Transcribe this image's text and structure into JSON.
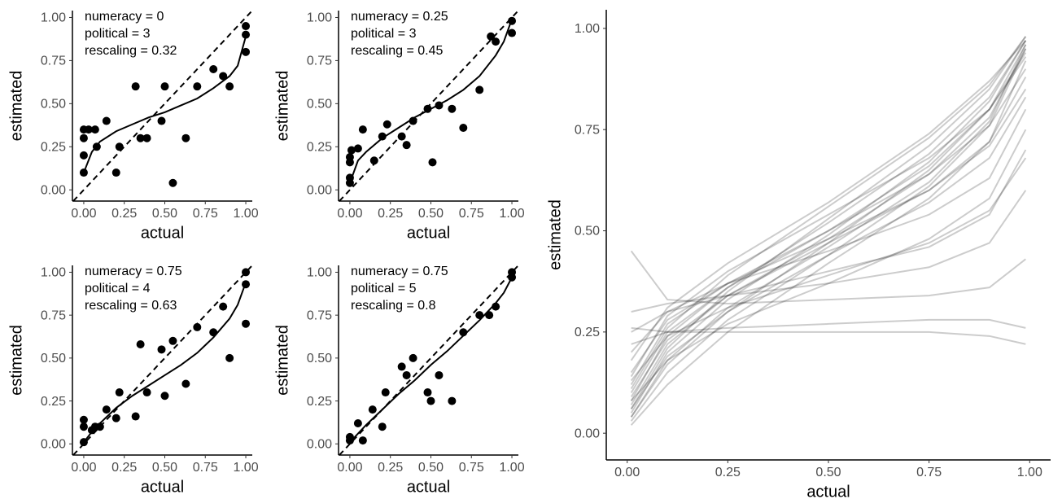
{
  "chart_data": [
    {
      "type": "scatter",
      "annotation": [
        "numeracy =  0",
        "political =  3",
        "rescaling =  0.32"
      ],
      "xlabel": "actual",
      "ylabel": "estimated",
      "xlim": [
        -0.07,
        1.04
      ],
      "ylim": [
        -0.065,
        1.04
      ],
      "xticks": [
        {
          "value": 0,
          "label": "0.00"
        },
        {
          "value": 0.25,
          "label": "0.25"
        },
        {
          "value": 0.5,
          "label": "0.50"
        },
        {
          "value": 0.75,
          "label": "0.75"
        },
        {
          "value": 1,
          "label": "1.00"
        }
      ],
      "yticks": [
        {
          "value": 0,
          "label": "0.00"
        },
        {
          "value": 0.25,
          "label": "0.25"
        },
        {
          "value": 0.5,
          "label": "0.50"
        },
        {
          "value": 0.75,
          "label": "0.75"
        },
        {
          "value": 1,
          "label": "1.00"
        }
      ],
      "identity_line": true,
      "color": "#000000",
      "points": {
        "x": [
          0,
          0,
          0,
          0,
          0.03,
          0.07,
          0.08,
          0.14,
          0.2,
          0.22,
          0.32,
          0.35,
          0.39,
          0.48,
          0.5,
          0.55,
          0.63,
          0.7,
          0.8,
          0.86,
          0.9,
          1,
          1,
          1
        ],
        "y": [
          0.1,
          0.2,
          0.3,
          0.35,
          0.35,
          0.35,
          0.25,
          0.4,
          0.1,
          0.25,
          0.6,
          0.3,
          0.3,
          0.4,
          0.6,
          0.04,
          0.3,
          0.6,
          0.7,
          0.66,
          0.6,
          0.8,
          0.9,
          0.95
        ]
      },
      "fit": {
        "x": [
          0,
          0.05,
          0.1,
          0.2,
          0.3,
          0.4,
          0.5,
          0.6,
          0.7,
          0.8,
          0.9,
          0.95,
          1
        ],
        "y": [
          0.1,
          0.22,
          0.28,
          0.34,
          0.38,
          0.42,
          0.45,
          0.49,
          0.53,
          0.59,
          0.66,
          0.72,
          0.89
        ]
      }
    },
    {
      "type": "scatter",
      "annotation": [
        "numeracy =  0.25",
        "political =  3",
        "rescaling =  0.45"
      ],
      "xlabel": "actual",
      "ylabel": "estimated",
      "xlim": [
        -0.07,
        1.04
      ],
      "ylim": [
        -0.065,
        1.04
      ],
      "xticks": [
        {
          "value": 0,
          "label": "0.00"
        },
        {
          "value": 0.25,
          "label": "0.25"
        },
        {
          "value": 0.5,
          "label": "0.50"
        },
        {
          "value": 0.75,
          "label": "0.75"
        },
        {
          "value": 1,
          "label": "1.00"
        }
      ],
      "yticks": [
        {
          "value": 0,
          "label": "0.00"
        },
        {
          "value": 0.25,
          "label": "0.25"
        },
        {
          "value": 0.5,
          "label": "0.50"
        },
        {
          "value": 0.75,
          "label": "0.75"
        },
        {
          "value": 1,
          "label": "1.00"
        }
      ],
      "identity_line": true,
      "color": "#000000",
      "points": {
        "x": [
          0,
          0,
          0,
          0,
          0.01,
          0.05,
          0.08,
          0.15,
          0.2,
          0.23,
          0.32,
          0.35,
          0.39,
          0.48,
          0.51,
          0.55,
          0.63,
          0.7,
          0.8,
          0.87,
          0.9,
          1,
          1
        ],
        "y": [
          0.04,
          0.07,
          0.16,
          0.19,
          0.23,
          0.24,
          0.35,
          0.17,
          0.31,
          0.38,
          0.31,
          0.26,
          0.4,
          0.47,
          0.16,
          0.49,
          0.47,
          0.36,
          0.58,
          0.89,
          0.86,
          0.91,
          0.98
        ]
      },
      "fit": {
        "x": [
          0,
          0.05,
          0.1,
          0.2,
          0.3,
          0.4,
          0.5,
          0.6,
          0.7,
          0.8,
          0.9,
          0.95,
          1
        ],
        "y": [
          0.04,
          0.17,
          0.22,
          0.3,
          0.36,
          0.42,
          0.47,
          0.52,
          0.58,
          0.66,
          0.78,
          0.86,
          0.99
        ]
      }
    },
    {
      "type": "scatter",
      "annotation": [
        "numeracy =  0.75",
        "political =  4",
        "rescaling =  0.63"
      ],
      "xlabel": "actual",
      "ylabel": "estimated",
      "xlim": [
        -0.07,
        1.04
      ],
      "ylim": [
        -0.065,
        1.04
      ],
      "xticks": [
        {
          "value": 0,
          "label": "0.00"
        },
        {
          "value": 0.25,
          "label": "0.25"
        },
        {
          "value": 0.5,
          "label": "0.50"
        },
        {
          "value": 0.75,
          "label": "0.75"
        },
        {
          "value": 1,
          "label": "1.00"
        }
      ],
      "yticks": [
        {
          "value": 0,
          "label": "0.00"
        },
        {
          "value": 0.25,
          "label": "0.25"
        },
        {
          "value": 0.5,
          "label": "0.50"
        },
        {
          "value": 0.75,
          "label": "0.75"
        },
        {
          "value": 1,
          "label": "1.00"
        }
      ],
      "identity_line": true,
      "color": "#000000",
      "points": {
        "x": [
          0,
          0,
          0,
          0.05,
          0.07,
          0.1,
          0.14,
          0.2,
          0.22,
          0.32,
          0.35,
          0.39,
          0.48,
          0.5,
          0.55,
          0.63,
          0.7,
          0.8,
          0.86,
          0.9,
          1,
          1,
          1
        ],
        "y": [
          0.01,
          0.1,
          0.14,
          0.08,
          0.1,
          0.1,
          0.2,
          0.15,
          0.3,
          0.16,
          0.58,
          0.3,
          0.55,
          0.28,
          0.6,
          0.35,
          0.68,
          0.65,
          0.8,
          0.5,
          0.7,
          0.93,
          1.0
        ]
      },
      "fit": {
        "x": [
          0,
          0.05,
          0.1,
          0.2,
          0.3,
          0.4,
          0.5,
          0.6,
          0.7,
          0.8,
          0.9,
          0.95,
          1
        ],
        "y": [
          0.01,
          0.07,
          0.12,
          0.21,
          0.28,
          0.34,
          0.4,
          0.46,
          0.53,
          0.62,
          0.73,
          0.81,
          0.94
        ]
      }
    },
    {
      "type": "scatter",
      "annotation": [
        "numeracy =  0.75",
        "political =  5",
        "rescaling =  0.8"
      ],
      "xlabel": "actual",
      "ylabel": "estimated",
      "xlim": [
        -0.07,
        1.04
      ],
      "ylim": [
        -0.065,
        1.04
      ],
      "xticks": [
        {
          "value": 0,
          "label": "0.00"
        },
        {
          "value": 0.25,
          "label": "0.25"
        },
        {
          "value": 0.5,
          "label": "0.50"
        },
        {
          "value": 0.75,
          "label": "0.75"
        },
        {
          "value": 1,
          "label": "1.00"
        }
      ],
      "yticks": [
        {
          "value": 0,
          "label": "0.00"
        },
        {
          "value": 0.25,
          "label": "0.25"
        },
        {
          "value": 0.5,
          "label": "0.50"
        },
        {
          "value": 0.75,
          "label": "0.75"
        },
        {
          "value": 1,
          "label": "1.00"
        }
      ],
      "identity_line": true,
      "color": "#000000",
      "points": {
        "x": [
          0,
          0,
          0.05,
          0.08,
          0.14,
          0.2,
          0.22,
          0.32,
          0.35,
          0.39,
          0.48,
          0.5,
          0.55,
          0.63,
          0.7,
          0.8,
          0.86,
          0.9,
          1,
          1
        ],
        "y": [
          0.02,
          0.04,
          0.12,
          0.02,
          0.2,
          0.1,
          0.3,
          0.45,
          0.4,
          0.5,
          0.3,
          0.25,
          0.4,
          0.25,
          0.65,
          0.75,
          0.75,
          0.8,
          0.97,
          1.0
        ]
      },
      "fit": {
        "x": [
          0,
          0.05,
          0.1,
          0.2,
          0.3,
          0.4,
          0.5,
          0.6,
          0.7,
          0.8,
          0.9,
          0.95,
          1
        ],
        "y": [
          0.01,
          0.06,
          0.11,
          0.2,
          0.29,
          0.37,
          0.46,
          0.54,
          0.63,
          0.72,
          0.82,
          0.88,
          0.97
        ]
      }
    },
    {
      "type": "line",
      "xlabel": "actual",
      "ylabel": "estimated",
      "xlim": [
        -0.052,
        1.052
      ],
      "ylim": [
        -0.066,
        1.046
      ],
      "xticks": [
        {
          "value": 0,
          "label": "0.00"
        },
        {
          "value": 0.25,
          "label": "0.25"
        },
        {
          "value": 0.5,
          "label": "0.50"
        },
        {
          "value": 0.75,
          "label": "0.75"
        },
        {
          "value": 1,
          "label": "1.00"
        }
      ],
      "yticks": [
        {
          "value": 0,
          "label": "0.00"
        },
        {
          "value": 0.25,
          "label": "0.25"
        },
        {
          "value": 0.5,
          "label": "0.50"
        },
        {
          "value": 0.75,
          "label": "0.75"
        },
        {
          "value": 1,
          "label": "1.00"
        }
      ],
      "color": "#000000",
      "opacity": 0.2,
      "x": [
        0.01,
        0.1,
        0.25,
        0.5,
        0.75,
        0.9,
        0.99
      ],
      "series": [
        {
          "values": [
            0.07,
            0.22,
            0.34,
            0.48,
            0.64,
            0.78,
            0.95
          ]
        },
        {
          "values": [
            0.04,
            0.18,
            0.31,
            0.46,
            0.62,
            0.77,
            0.96
          ]
        },
        {
          "values": [
            0.1,
            0.25,
            0.36,
            0.5,
            0.66,
            0.8,
            0.94
          ]
        },
        {
          "values": [
            0.05,
            0.2,
            0.33,
            0.49,
            0.67,
            0.82,
            0.97
          ]
        },
        {
          "values": [
            0.12,
            0.27,
            0.37,
            0.5,
            0.64,
            0.76,
            0.9
          ]
        },
        {
          "values": [
            0.03,
            0.15,
            0.28,
            0.44,
            0.61,
            0.76,
            0.95
          ]
        },
        {
          "values": [
            0.08,
            0.24,
            0.36,
            0.52,
            0.69,
            0.83,
            0.97
          ]
        },
        {
          "values": [
            0.15,
            0.28,
            0.37,
            0.48,
            0.6,
            0.72,
            0.88
          ]
        },
        {
          "values": [
            0.06,
            0.21,
            0.35,
            0.53,
            0.71,
            0.85,
            0.98
          ]
        },
        {
          "values": [
            0.09,
            0.23,
            0.34,
            0.47,
            0.6,
            0.71,
            0.85
          ]
        },
        {
          "values": [
            0.2,
            0.3,
            0.37,
            0.45,
            0.54,
            0.63,
            0.8
          ]
        },
        {
          "values": [
            0.02,
            0.12,
            0.25,
            0.42,
            0.58,
            0.72,
            0.92
          ]
        },
        {
          "values": [
            0.11,
            0.26,
            0.39,
            0.56,
            0.73,
            0.86,
            0.98
          ]
        },
        {
          "values": [
            0.25,
            0.3,
            0.34,
            0.4,
            0.46,
            0.54,
            0.7
          ]
        },
        {
          "values": [
            0.3,
            0.32,
            0.34,
            0.37,
            0.41,
            0.47,
            0.6
          ]
        },
        {
          "values": [
            0.45,
            0.33,
            0.32,
            0.33,
            0.34,
            0.36,
            0.43
          ]
        },
        {
          "values": [
            0.22,
            0.25,
            0.26,
            0.27,
            0.28,
            0.28,
            0.26
          ]
        },
        {
          "values": [
            0.26,
            0.25,
            0.25,
            0.25,
            0.25,
            0.24,
            0.22
          ]
        },
        {
          "values": [
            0.14,
            0.29,
            0.4,
            0.54,
            0.68,
            0.8,
            0.93
          ]
        },
        {
          "values": [
            0.06,
            0.19,
            0.3,
            0.44,
            0.57,
            0.68,
            0.83
          ]
        },
        {
          "values": [
            0.04,
            0.17,
            0.3,
            0.47,
            0.65,
            0.8,
            0.96
          ]
        },
        {
          "values": [
            0.18,
            0.31,
            0.42,
            0.57,
            0.74,
            0.87,
            0.97
          ]
        },
        {
          "values": [
            0.08,
            0.18,
            0.27,
            0.37,
            0.48,
            0.58,
            0.75
          ]
        },
        {
          "values": [
            0.13,
            0.24,
            0.31,
            0.39,
            0.47,
            0.55,
            0.68
          ]
        }
      ]
    }
  ]
}
